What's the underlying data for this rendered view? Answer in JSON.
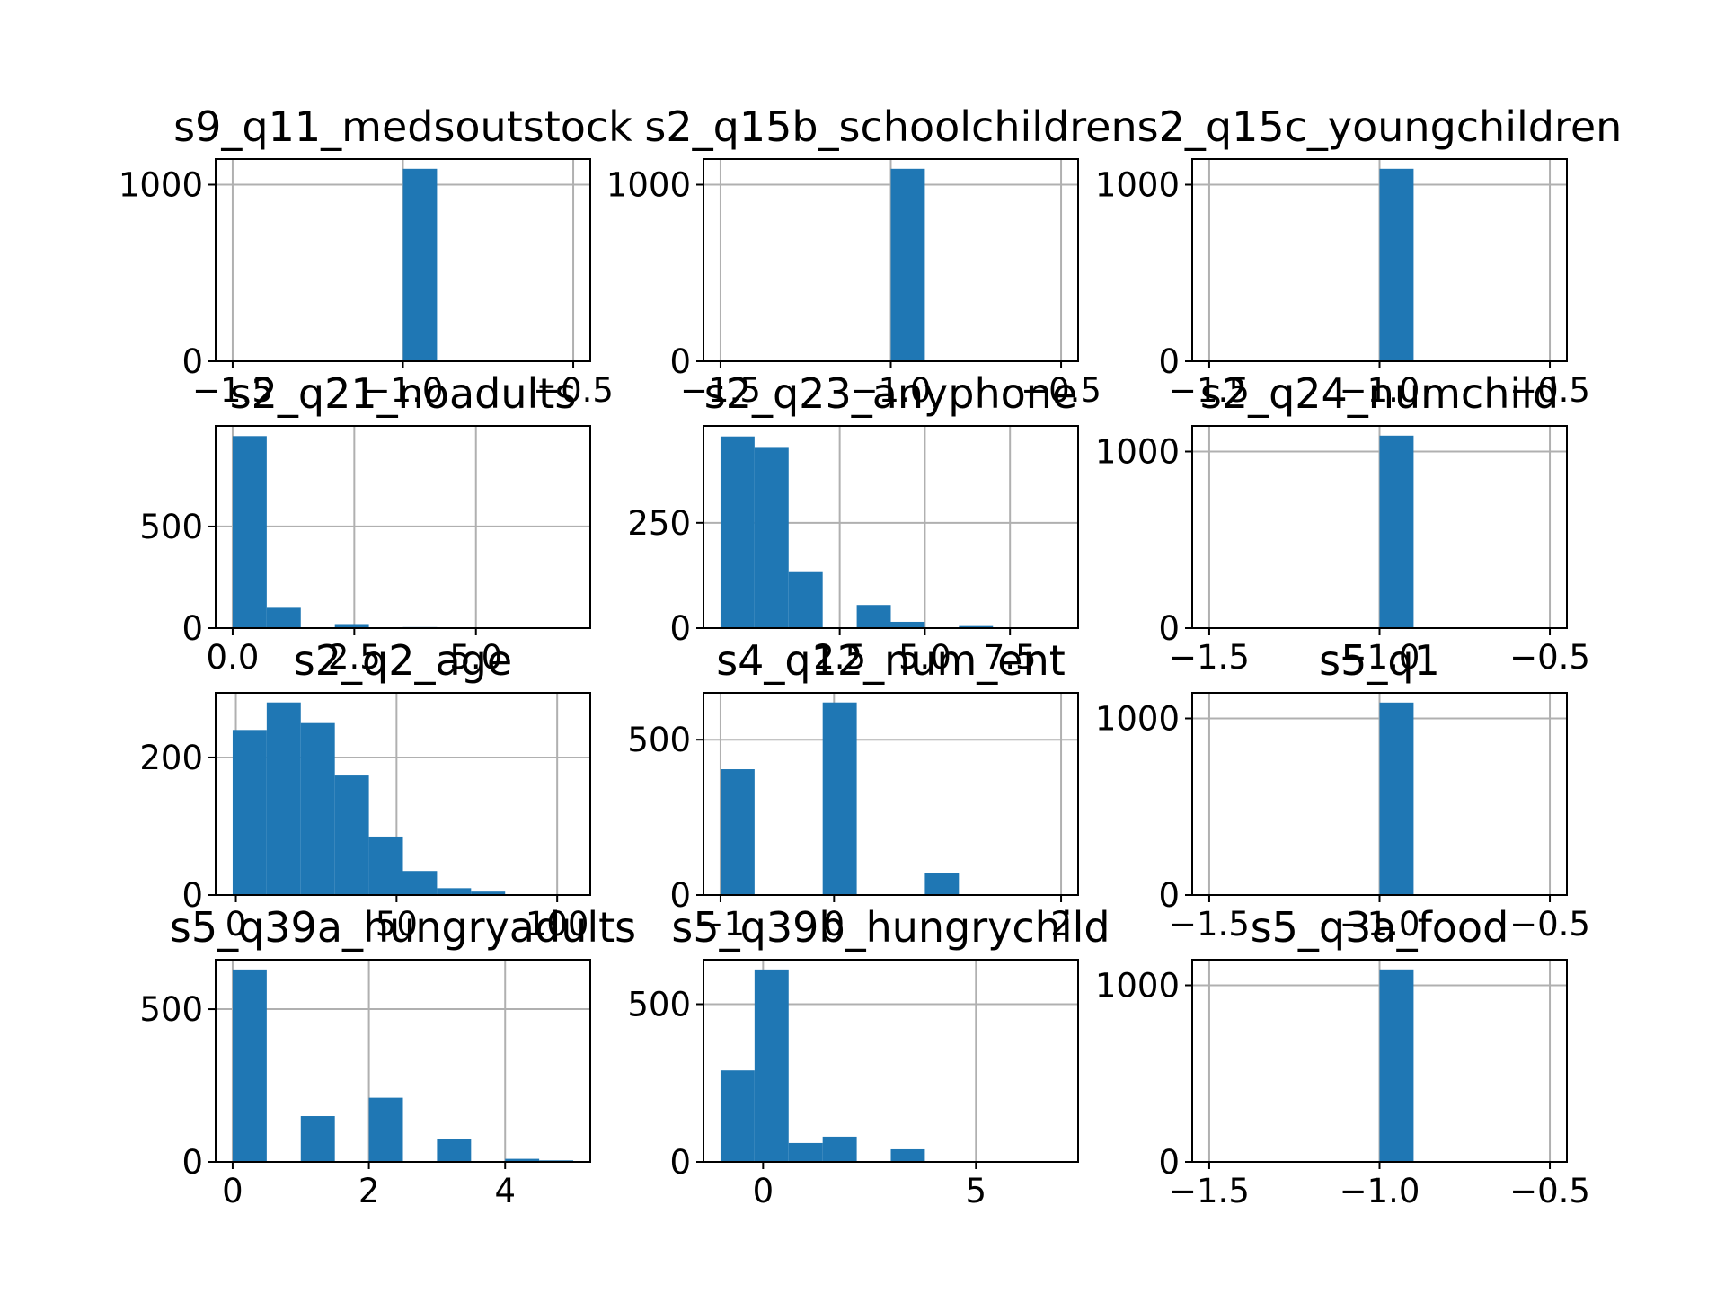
{
  "chart_data": [
    {
      "type": "bar",
      "title": "s9_q11_medsoutstock",
      "bin_edges": [
        -1.5,
        -1.4,
        -1.3,
        -1.2,
        -1.1,
        -1.0,
        -0.9,
        -0.8,
        -0.7,
        -0.6,
        -0.5
      ],
      "values": [
        0,
        0,
        0,
        0,
        0,
        1090,
        0,
        0,
        0,
        0
      ],
      "xlim": [
        -1.55,
        -0.45
      ],
      "ylim": [
        0,
        1145
      ],
      "xticks": [
        -1.5,
        -1.0,
        -0.5
      ],
      "xtick_labels": [
        "−1.5",
        "−1.0",
        "−0.5"
      ],
      "yticks": [
        0,
        1000
      ],
      "ytick_labels": [
        "0",
        "1000"
      ],
      "grid": true
    },
    {
      "type": "bar",
      "title": "s2_q15b_schoolchildren",
      "bin_edges": [
        -1.5,
        -1.4,
        -1.3,
        -1.2,
        -1.1,
        -1.0,
        -0.9,
        -0.8,
        -0.7,
        -0.6,
        -0.5
      ],
      "values": [
        0,
        0,
        0,
        0,
        0,
        1090,
        0,
        0,
        0,
        0
      ],
      "xlim": [
        -1.55,
        -0.45
      ],
      "ylim": [
        0,
        1145
      ],
      "xticks": [
        -1.5,
        -1.0,
        -0.5
      ],
      "xtick_labels": [
        "−1.5",
        "−1.0",
        "−0.5"
      ],
      "yticks": [
        0,
        1000
      ],
      "ytick_labels": [
        "0",
        "1000"
      ],
      "grid": true
    },
    {
      "type": "bar",
      "title": "s2_q15c_youngchildren",
      "bin_edges": [
        -1.5,
        -1.4,
        -1.3,
        -1.2,
        -1.1,
        -1.0,
        -0.9,
        -0.8,
        -0.7,
        -0.6,
        -0.5
      ],
      "values": [
        0,
        0,
        0,
        0,
        0,
        1090,
        0,
        0,
        0,
        0
      ],
      "xlim": [
        -1.55,
        -0.45
      ],
      "ylim": [
        0,
        1145
      ],
      "xticks": [
        -1.5,
        -1.0,
        -0.5
      ],
      "xtick_labels": [
        "−1.5",
        "−1.0",
        "−0.5"
      ],
      "yticks": [
        0,
        1000
      ],
      "ytick_labels": [
        "0",
        "1000"
      ],
      "grid": true
    },
    {
      "type": "bar",
      "title": "s2_q21_noadults",
      "bin_edges": [
        0,
        0.7,
        1.4,
        2.1,
        2.8,
        3.5,
        4.2,
        4.9,
        5.6,
        6.3,
        7.0
      ],
      "values": [
        945,
        100,
        0,
        20,
        0,
        5,
        0,
        0,
        0,
        0
      ],
      "xlim": [
        -0.35,
        7.35
      ],
      "ylim": [
        0,
        995
      ],
      "xticks": [
        0,
        2.5,
        5.0
      ],
      "xtick_labels": [
        "0.0",
        "2.5",
        "5.0"
      ],
      "yticks": [
        0,
        500
      ],
      "ytick_labels": [
        "0",
        "500"
      ],
      "grid": true
    },
    {
      "type": "bar",
      "title": "s2_q23_anyphone",
      "bin_edges": [
        -1,
        0,
        1,
        2,
        3,
        4,
        5,
        6,
        7,
        8,
        9
      ],
      "values": [
        455,
        430,
        135,
        0,
        55,
        15,
        0,
        5,
        0,
        0
      ],
      "xlim": [
        -1.5,
        9.5
      ],
      "ylim": [
        0,
        480
      ],
      "xticks": [
        2.5,
        5.0,
        7.5
      ],
      "xtick_labels": [
        "2.5",
        "5.0",
        "7.5"
      ],
      "yticks": [
        0,
        250
      ],
      "ytick_labels": [
        "0",
        "250"
      ],
      "grid": true
    },
    {
      "type": "bar",
      "title": "s2_q24_numchild",
      "bin_edges": [
        -1.5,
        -1.4,
        -1.3,
        -1.2,
        -1.1,
        -1.0,
        -0.9,
        -0.8,
        -0.7,
        -0.6,
        -0.5
      ],
      "values": [
        0,
        0,
        0,
        0,
        0,
        1090,
        0,
        0,
        0,
        0
      ],
      "xlim": [
        -1.55,
        -0.45
      ],
      "ylim": [
        0,
        1145
      ],
      "xticks": [
        -1.5,
        -1.0,
        -0.5
      ],
      "xtick_labels": [
        "−1.5",
        "−1.0",
        "−0.5"
      ],
      "yticks": [
        0,
        1000
      ],
      "ytick_labels": [
        "0",
        "1000"
      ],
      "grid": true
    },
    {
      "type": "bar",
      "title": "s2_q2_age",
      "bin_edges": [
        -1,
        9.6,
        20.2,
        30.8,
        41.4,
        52,
        62.6,
        73.2,
        83.8,
        94.4,
        105
      ],
      "values": [
        240,
        280,
        250,
        175,
        85,
        35,
        10,
        5,
        0,
        0
      ],
      "xlim": [
        -6.3,
        110.3
      ],
      "ylim": [
        0,
        294
      ],
      "xticks": [
        0,
        50,
        100
      ],
      "xtick_labels": [
        "0",
        "50",
        "100"
      ],
      "yticks": [
        0,
        200
      ],
      "ytick_labels": [
        "0",
        "200"
      ],
      "grid": true
    },
    {
      "type": "bar",
      "title": "s4_q12_num_ent",
      "bin_edges": [
        -1,
        -0.7,
        -0.4,
        -0.1,
        0.2,
        0.5,
        0.8,
        1.1,
        1.4,
        1.7,
        2.0
      ],
      "values": [
        405,
        0,
        0,
        620,
        0,
        0,
        70,
        0,
        0,
        0
      ],
      "xlim": [
        -1.15,
        2.15
      ],
      "ylim": [
        0,
        651
      ],
      "xticks": [
        -1,
        0,
        2
      ],
      "xtick_labels": [
        "−1",
        "0",
        "2"
      ],
      "yticks": [
        0,
        500
      ],
      "ytick_labels": [
        "0",
        "500"
      ],
      "grid": true
    },
    {
      "type": "bar",
      "title": "s5_q1",
      "bin_edges": [
        -1.5,
        -1.4,
        -1.3,
        -1.2,
        -1.1,
        -1.0,
        -0.9,
        -0.8,
        -0.7,
        -0.6,
        -0.5
      ],
      "values": [
        0,
        0,
        0,
        0,
        0,
        1090,
        0,
        0,
        0,
        0
      ],
      "xlim": [
        -1.55,
        -0.45
      ],
      "ylim": [
        0,
        1145
      ],
      "xticks": [
        -1.5,
        -1.0,
        -0.5
      ],
      "xtick_labels": [
        "−1.5",
        "−1.0",
        "−0.5"
      ],
      "yticks": [
        0,
        1000
      ],
      "ytick_labels": [
        "0",
        "1000"
      ],
      "grid": true
    },
    {
      "type": "bar",
      "title": "s5_q39a_hungryadults",
      "bin_edges": [
        0,
        0.5,
        1,
        1.5,
        2,
        2.5,
        3,
        3.5,
        4,
        4.5,
        5
      ],
      "values": [
        630,
        0,
        150,
        0,
        210,
        0,
        75,
        0,
        10,
        5
      ],
      "xlim": [
        -0.25,
        5.25
      ],
      "ylim": [
        0,
        662
      ],
      "xticks": [
        0,
        2,
        4
      ],
      "xtick_labels": [
        "0",
        "2",
        "4"
      ],
      "yticks": [
        0,
        500
      ],
      "ytick_labels": [
        "0",
        "500"
      ],
      "grid": true
    },
    {
      "type": "bar",
      "title": "s5_q39b_hungrychild",
      "bin_edges": [
        -1,
        -0.2,
        0.6,
        1.4,
        2.2,
        3.0,
        3.8,
        4.6,
        5.4,
        6.2,
        7.0
      ],
      "values": [
        290,
        610,
        60,
        80,
        0,
        40,
        0,
        0,
        0,
        0
      ],
      "xlim": [
        -1.4,
        7.4
      ],
      "ylim": [
        0,
        641
      ],
      "xticks": [
        0,
        5
      ],
      "xtick_labels": [
        "0",
        "5"
      ],
      "yticks": [
        0,
        500
      ],
      "ytick_labels": [
        "0",
        "500"
      ],
      "grid": true
    },
    {
      "type": "bar",
      "title": "s5_q3a_food",
      "bin_edges": [
        -1.5,
        -1.4,
        -1.3,
        -1.2,
        -1.1,
        -1.0,
        -0.9,
        -0.8,
        -0.7,
        -0.6,
        -0.5
      ],
      "values": [
        0,
        0,
        0,
        0,
        0,
        1090,
        0,
        0,
        0,
        0
      ],
      "xlim": [
        -1.55,
        -0.45
      ],
      "ylim": [
        0,
        1145
      ],
      "xticks": [
        -1.5,
        -1.0,
        -0.5
      ],
      "xtick_labels": [
        "−1.5",
        "−1.0",
        "−0.5"
      ],
      "yticks": [
        0,
        1000
      ],
      "ytick_labels": [
        "0",
        "1000"
      ],
      "grid": true
    }
  ],
  "colors": {
    "bar": "#1f77b4",
    "grid": "#b0b0b0",
    "axes": "#000000"
  }
}
